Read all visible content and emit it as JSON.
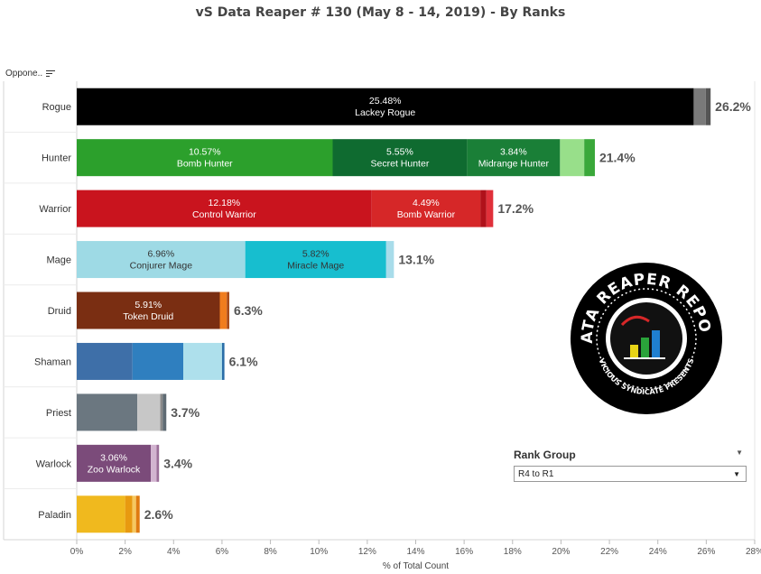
{
  "header": {
    "title": "vS Data Reaper #  130 (May 8 - 14, 2019) - By Ranks",
    "column_label": "Oppone..",
    "sort_icon": "sort-descending-icon"
  },
  "filter": {
    "label": "Rank Group",
    "selected": "R4 to R1",
    "dropdown_icon": "chevron-down-icon"
  },
  "logo": {
    "text_top": "DATA REAPER REPORT",
    "text_bottom": "VICIOUS SYNDICATE PRESENTS"
  },
  "chart_data": {
    "type": "bar",
    "orientation": "horizontal",
    "stacked": true,
    "xlabel": "% of Total Count",
    "xlim": [
      0,
      28
    ],
    "xticks": [
      0,
      2,
      4,
      6,
      8,
      10,
      12,
      14,
      16,
      18,
      20,
      22,
      24,
      26,
      28
    ],
    "xtick_labels": [
      "0%",
      "2%",
      "4%",
      "6%",
      "8%",
      "10%",
      "12%",
      "14%",
      "16%",
      "18%",
      "20%",
      "22%",
      "24%",
      "26%",
      "28%"
    ],
    "grid": false,
    "categories": [
      {
        "name": "Rogue",
        "total_label": "26.2%",
        "segments": [
          {
            "value": 25.48,
            "value_label": "25.48%",
            "label": "Lackey Rogue",
            "color": "#000000",
            "text_color": "#ffffff"
          },
          {
            "value": 0.5,
            "color": "#7a7a7a"
          },
          {
            "value": 0.2,
            "color": "#555555"
          }
        ]
      },
      {
        "name": "Hunter",
        "total_label": "21.4%",
        "segments": [
          {
            "value": 10.57,
            "value_label": "10.57%",
            "label": "Bomb Hunter",
            "color": "#2ca02c",
            "text_color": "#ffffff"
          },
          {
            "value": 5.55,
            "value_label": "5.55%",
            "label": "Secret Hunter",
            "color": "#0f6b30",
            "text_color": "#ffffff"
          },
          {
            "value": 3.84,
            "value_label": "3.84%",
            "label": "Midrange Hunter",
            "color": "#1a7f37",
            "text_color": "#ffffff"
          },
          {
            "value": 1.0,
            "color": "#98df8a"
          },
          {
            "value": 0.44,
            "color": "#3aa83a"
          }
        ]
      },
      {
        "name": "Warrior",
        "total_label": "17.2%",
        "segments": [
          {
            "value": 12.18,
            "value_label": "12.18%",
            "label": "Control Warrior",
            "color": "#c9141e",
            "text_color": "#ffffff"
          },
          {
            "value": 4.49,
            "value_label": "4.49%",
            "label": "Bomb Warrior",
            "color": "#d62728",
            "text_color": "#ffffff"
          },
          {
            "value": 0.25,
            "color": "#b0111a"
          },
          {
            "value": 0.28,
            "color": "#e0303a"
          }
        ]
      },
      {
        "name": "Mage",
        "total_label": "13.1%",
        "segments": [
          {
            "value": 6.96,
            "value_label": "6.96%",
            "label": "Conjurer Mage",
            "color": "#9edae5",
            "text_color": "#333333"
          },
          {
            "value": 5.82,
            "value_label": "5.82%",
            "label": "Miracle Mage",
            "color": "#17becf",
            "text_color": "#333333"
          },
          {
            "value": 0.32,
            "color": "#a8dcea"
          }
        ]
      },
      {
        "name": "Druid",
        "total_label": "6.3%",
        "segments": [
          {
            "value": 5.91,
            "value_label": "5.91%",
            "label": "Token Druid",
            "color": "#7a2e12",
            "text_color": "#ffffff"
          },
          {
            "value": 0.29,
            "color": "#f07d1e"
          },
          {
            "value": 0.1,
            "color": "#a84a18"
          }
        ]
      },
      {
        "name": "Shaman",
        "total_label": "6.1%",
        "segments": [
          {
            "value": 2.3,
            "color": "#3e6fa8"
          },
          {
            "value": 2.1,
            "color": "#2f7fbf"
          },
          {
            "value": 1.6,
            "color": "#aee0ec"
          },
          {
            "value": 0.1,
            "color": "#2a6ea8"
          }
        ]
      },
      {
        "name": "Priest",
        "total_label": "3.7%",
        "segments": [
          {
            "value": 2.5,
            "color": "#6b7780"
          },
          {
            "value": 0.95,
            "color": "#c7c7c7"
          },
          {
            "value": 0.1,
            "color": "#8a8a8a"
          },
          {
            "value": 0.15,
            "color": "#5f6b73"
          }
        ]
      },
      {
        "name": "Warlock",
        "total_label": "3.4%",
        "segments": [
          {
            "value": 3.06,
            "value_label": "3.06%",
            "label": "Zoo Warlock",
            "color": "#7b4b7a",
            "text_color": "#ffffff"
          },
          {
            "value": 0.24,
            "color": "#d2b4d0"
          },
          {
            "value": 0.1,
            "color": "#9b6f99"
          }
        ]
      },
      {
        "name": "Paladin",
        "total_label": "2.6%",
        "segments": [
          {
            "value": 2.0,
            "color": "#f0b91e"
          },
          {
            "value": 0.3,
            "color": "#e89a10"
          },
          {
            "value": 0.15,
            "color": "#f6c85f"
          },
          {
            "value": 0.15,
            "color": "#e07a10"
          }
        ]
      }
    ]
  }
}
